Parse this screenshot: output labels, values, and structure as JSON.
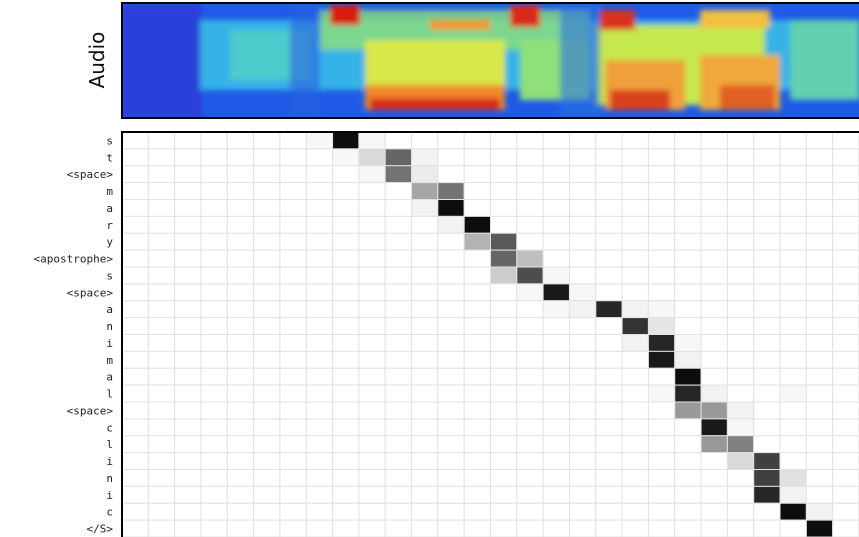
{
  "chart_data": {
    "type": "heatmap",
    "panel_label": "Audio",
    "y_categories": [
      "s",
      "t",
      "<space>",
      "m",
      "a",
      "r",
      "y",
      "<apostrophe>",
      "s",
      "<space>",
      "a",
      "n",
      "i",
      "m",
      "a",
      "l",
      "<space>",
      "c",
      "l",
      "i",
      "n",
      "i",
      "c",
      "</S>"
    ],
    "values": [
      [
        0,
        0,
        0,
        0,
        0,
        0,
        0,
        0.03,
        0.95,
        0.03,
        0,
        0,
        0,
        0,
        0,
        0,
        0,
        0,
        0,
        0,
        0,
        0,
        0,
        0,
        0,
        0,
        0,
        0
      ],
      [
        0,
        0,
        0,
        0,
        0,
        0,
        0,
        0,
        0.03,
        0.15,
        0.6,
        0.05,
        0,
        0,
        0,
        0,
        0,
        0,
        0,
        0,
        0,
        0,
        0,
        0,
        0,
        0,
        0,
        0
      ],
      [
        0,
        0,
        0,
        0,
        0,
        0,
        0,
        0,
        0,
        0.03,
        0.55,
        0.08,
        0,
        0,
        0,
        0,
        0,
        0,
        0,
        0,
        0,
        0,
        0,
        0,
        0,
        0,
        0,
        0
      ],
      [
        0,
        0,
        0,
        0,
        0,
        0,
        0,
        0,
        0,
        0,
        0,
        0.35,
        0.55,
        0,
        0,
        0,
        0,
        0,
        0,
        0,
        0,
        0,
        0,
        0,
        0,
        0,
        0,
        0
      ],
      [
        0,
        0,
        0,
        0,
        0,
        0,
        0,
        0,
        0,
        0,
        0,
        0.05,
        0.95,
        0,
        0,
        0,
        0,
        0,
        0,
        0,
        0,
        0,
        0,
        0,
        0,
        0,
        0,
        0
      ],
      [
        0,
        0,
        0,
        0,
        0,
        0,
        0,
        0,
        0,
        0,
        0,
        0,
        0.05,
        0.95,
        0,
        0,
        0,
        0,
        0,
        0,
        0,
        0,
        0,
        0,
        0,
        0,
        0,
        0
      ],
      [
        0,
        0,
        0,
        0,
        0,
        0,
        0,
        0,
        0,
        0,
        0,
        0,
        0,
        0.3,
        0.65,
        0,
        0,
        0,
        0,
        0,
        0,
        0,
        0,
        0,
        0,
        0,
        0,
        0
      ],
      [
        0,
        0,
        0,
        0,
        0,
        0,
        0,
        0,
        0,
        0,
        0,
        0,
        0,
        0,
        0.6,
        0.25,
        0,
        0,
        0,
        0,
        0,
        0,
        0,
        0,
        0,
        0,
        0,
        0
      ],
      [
        0,
        0,
        0,
        0,
        0,
        0,
        0,
        0,
        0,
        0,
        0,
        0,
        0,
        0,
        0.2,
        0.7,
        0.03,
        0,
        0,
        0,
        0,
        0,
        0,
        0,
        0,
        0,
        0,
        0
      ],
      [
        0,
        0,
        0,
        0,
        0,
        0,
        0,
        0,
        0,
        0,
        0,
        0,
        0,
        0,
        0,
        0.03,
        0.9,
        0.03,
        0,
        0,
        0,
        0,
        0,
        0,
        0,
        0,
        0,
        0
      ],
      [
        0,
        0,
        0,
        0,
        0,
        0,
        0,
        0,
        0,
        0,
        0,
        0,
        0,
        0,
        0,
        0,
        0.03,
        0.05,
        0.85,
        0.05,
        0.03,
        0,
        0,
        0,
        0,
        0,
        0,
        0
      ],
      [
        0,
        0,
        0,
        0,
        0,
        0,
        0,
        0,
        0,
        0,
        0,
        0,
        0,
        0,
        0,
        0,
        0,
        0,
        0,
        0.8,
        0.1,
        0,
        0,
        0,
        0,
        0,
        0,
        0
      ],
      [
        0,
        0,
        0,
        0,
        0,
        0,
        0,
        0,
        0,
        0,
        0,
        0,
        0,
        0,
        0,
        0,
        0,
        0,
        0,
        0.05,
        0.85,
        0.03,
        0,
        0,
        0,
        0,
        0,
        0
      ],
      [
        0,
        0,
        0,
        0,
        0,
        0,
        0,
        0,
        0,
        0,
        0,
        0,
        0,
        0,
        0,
        0,
        0,
        0,
        0,
        0,
        0.9,
        0.05,
        0,
        0,
        0,
        0,
        0,
        0
      ],
      [
        0,
        0,
        0,
        0,
        0,
        0,
        0,
        0,
        0,
        0,
        0,
        0,
        0,
        0,
        0,
        0,
        0,
        0,
        0,
        0,
        0,
        0.95,
        0,
        0,
        0,
        0,
        0,
        0
      ],
      [
        0,
        0,
        0,
        0,
        0,
        0,
        0,
        0,
        0,
        0,
        0,
        0,
        0,
        0,
        0,
        0,
        0,
        0,
        0,
        0,
        0.03,
        0.85,
        0.05,
        0,
        0,
        0.03,
        0,
        0
      ],
      [
        0,
        0,
        0,
        0,
        0,
        0,
        0,
        0,
        0,
        0,
        0,
        0,
        0,
        0,
        0,
        0,
        0,
        0,
        0,
        0,
        0,
        0.4,
        0.4,
        0.05,
        0,
        0,
        0,
        0
      ],
      [
        0,
        0,
        0,
        0,
        0,
        0,
        0,
        0,
        0,
        0,
        0,
        0,
        0,
        0,
        0,
        0,
        0,
        0,
        0,
        0,
        0,
        0,
        0.9,
        0.03,
        0,
        0,
        0,
        0
      ],
      [
        0,
        0,
        0,
        0,
        0,
        0,
        0,
        0,
        0,
        0,
        0,
        0,
        0,
        0,
        0,
        0,
        0,
        0,
        0,
        0,
        0,
        0,
        0.4,
        0.5,
        0,
        0,
        0,
        0
      ],
      [
        0,
        0,
        0,
        0,
        0,
        0,
        0,
        0,
        0,
        0,
        0,
        0,
        0,
        0,
        0,
        0,
        0,
        0,
        0,
        0,
        0,
        0,
        0,
        0.15,
        0.75,
        0,
        0,
        0
      ],
      [
        0,
        0,
        0,
        0,
        0,
        0,
        0,
        0,
        0,
        0,
        0,
        0,
        0,
        0,
        0,
        0,
        0,
        0,
        0,
        0,
        0,
        0,
        0,
        0,
        0.75,
        0.12,
        0,
        0
      ],
      [
        0,
        0,
        0,
        0,
        0,
        0,
        0,
        0,
        0,
        0,
        0,
        0,
        0,
        0,
        0,
        0,
        0,
        0,
        0,
        0,
        0,
        0,
        0,
        0,
        0.85,
        0.05,
        0,
        0
      ],
      [
        0,
        0,
        0,
        0,
        0,
        0,
        0,
        0,
        0,
        0,
        0,
        0,
        0,
        0,
        0,
        0,
        0,
        0,
        0,
        0,
        0,
        0,
        0,
        0,
        0,
        0.95,
        0.05,
        0
      ],
      [
        0,
        0,
        0,
        0,
        0,
        0,
        0,
        0,
        0,
        0,
        0,
        0,
        0,
        0,
        0,
        0,
        0,
        0,
        0,
        0,
        0,
        0,
        0,
        0,
        0,
        0,
        0.95,
        0
      ]
    ]
  }
}
